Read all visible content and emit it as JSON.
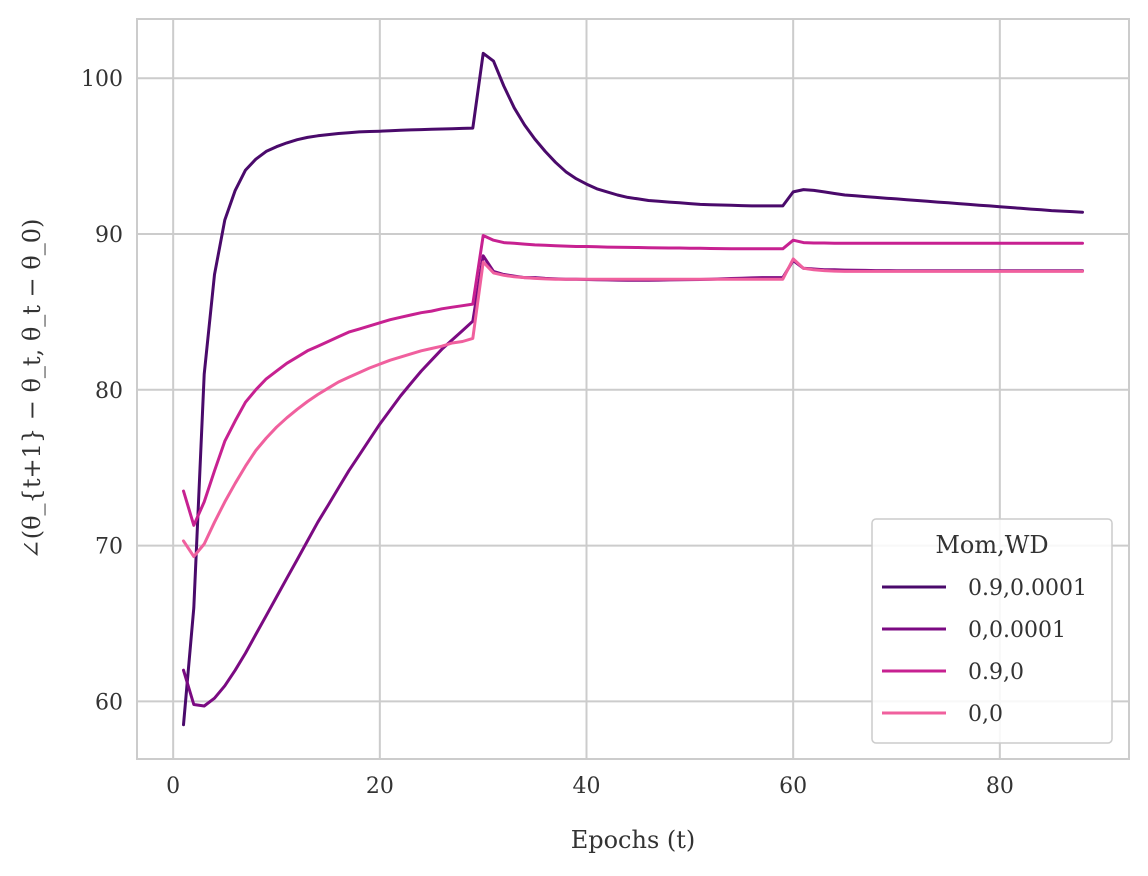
{
  "chart_data": {
    "type": "line",
    "title": "",
    "xlabel": "Epochs (t)",
    "ylabel": "∠(θ_{t+1} − θ_t, θ_t − θ_0)",
    "xlim": [
      -3.5,
      92.5
    ],
    "ylim": [
      56.3,
      103.8
    ],
    "xticks": [
      0,
      20,
      40,
      60,
      80
    ],
    "yticks": [
      60,
      70,
      80,
      90,
      100
    ],
    "xtick_labels": [
      "0",
      "20",
      "40",
      "60",
      "80"
    ],
    "ytick_labels": [
      "60",
      "70",
      "80",
      "90",
      "100"
    ],
    "grid": true,
    "legend": {
      "title": "Mom,WD",
      "placement": "bottom-right"
    },
    "series": [
      {
        "name": "0.9,0.0001",
        "color": "#4a0a6b",
        "x": [
          1,
          2,
          3,
          4,
          5,
          6,
          7,
          8,
          9,
          10,
          11,
          12,
          13,
          14,
          15,
          16,
          17,
          18,
          19,
          20,
          21,
          22,
          23,
          24,
          25,
          26,
          27,
          28,
          29,
          30,
          31,
          32,
          33,
          34,
          35,
          36,
          37,
          38,
          39,
          40,
          41,
          42,
          43,
          44,
          45,
          46,
          47,
          48,
          49,
          50,
          51,
          52,
          53,
          54,
          55,
          56,
          57,
          58,
          59,
          60,
          61,
          62,
          63,
          64,
          65,
          66,
          67,
          68,
          69,
          70,
          71,
          72,
          73,
          74,
          75,
          76,
          77,
          78,
          79,
          80,
          81,
          82,
          83,
          84,
          85,
          86,
          87,
          88
        ],
        "y": [
          58.5,
          66.0,
          81.0,
          87.4,
          90.9,
          92.8,
          94.1,
          94.8,
          95.3,
          95.6,
          95.85,
          96.05,
          96.2,
          96.3,
          96.38,
          96.45,
          96.5,
          96.55,
          96.58,
          96.6,
          96.63,
          96.66,
          96.68,
          96.7,
          96.72,
          96.74,
          96.76,
          96.78,
          96.8,
          101.6,
          101.1,
          99.5,
          98.1,
          97.0,
          96.1,
          95.3,
          94.6,
          94.0,
          93.55,
          93.2,
          92.9,
          92.7,
          92.5,
          92.35,
          92.25,
          92.15,
          92.1,
          92.05,
          92.0,
          91.95,
          91.9,
          91.88,
          91.86,
          91.84,
          91.82,
          91.8,
          91.8,
          91.8,
          91.8,
          92.7,
          92.85,
          92.8,
          92.7,
          92.6,
          92.5,
          92.45,
          92.4,
          92.35,
          92.3,
          92.25,
          92.2,
          92.15,
          92.1,
          92.05,
          92.0,
          91.95,
          91.9,
          91.85,
          91.8,
          91.75,
          91.7,
          91.65,
          91.6,
          91.55,
          91.5,
          91.47,
          91.44,
          91.4
        ]
      },
      {
        "name": "0,0.0001",
        "color": "#7b0a82",
        "x": [
          1,
          2,
          3,
          4,
          5,
          6,
          7,
          8,
          9,
          10,
          11,
          12,
          13,
          14,
          15,
          16,
          17,
          18,
          19,
          20,
          21,
          22,
          23,
          24,
          25,
          26,
          27,
          28,
          29,
          30,
          31,
          32,
          33,
          34,
          35,
          36,
          37,
          38,
          39,
          40,
          41,
          42,
          43,
          44,
          45,
          46,
          47,
          48,
          49,
          50,
          51,
          52,
          53,
          54,
          55,
          56,
          57,
          58,
          59,
          60,
          61,
          62,
          63,
          64,
          65,
          66,
          67,
          68,
          69,
          70,
          71,
          72,
          73,
          74,
          75,
          76,
          77,
          78,
          79,
          80,
          81,
          82,
          83,
          84,
          85,
          86,
          87,
          88
        ],
        "y": [
          62.0,
          59.8,
          59.7,
          60.2,
          61.0,
          62.0,
          63.1,
          64.3,
          65.5,
          66.7,
          67.9,
          69.1,
          70.3,
          71.5,
          72.6,
          73.7,
          74.8,
          75.8,
          76.8,
          77.8,
          78.7,
          79.6,
          80.4,
          81.2,
          81.9,
          82.6,
          83.2,
          83.8,
          84.4,
          88.6,
          87.6,
          87.4,
          87.3,
          87.2,
          87.2,
          87.15,
          87.12,
          87.1,
          87.1,
          87.08,
          87.06,
          87.05,
          87.04,
          87.03,
          87.03,
          87.03,
          87.04,
          87.05,
          87.06,
          87.07,
          87.08,
          87.1,
          87.12,
          87.14,
          87.16,
          87.18,
          87.2,
          87.2,
          87.2,
          88.3,
          87.8,
          87.75,
          87.7,
          87.7,
          87.68,
          87.67,
          87.66,
          87.65,
          87.65,
          87.64,
          87.64,
          87.64,
          87.64,
          87.64,
          87.64,
          87.64,
          87.64,
          87.64,
          87.64,
          87.64,
          87.64,
          87.64,
          87.64,
          87.64,
          87.64,
          87.64,
          87.64,
          87.64
        ]
      },
      {
        "name": "0.9,0",
        "color": "#c72191",
        "x": [
          1,
          2,
          3,
          4,
          5,
          6,
          7,
          8,
          9,
          10,
          11,
          12,
          13,
          14,
          15,
          16,
          17,
          18,
          19,
          20,
          21,
          22,
          23,
          24,
          25,
          26,
          27,
          28,
          29,
          30,
          31,
          32,
          33,
          34,
          35,
          36,
          37,
          38,
          39,
          40,
          41,
          42,
          43,
          44,
          45,
          46,
          47,
          48,
          49,
          50,
          51,
          52,
          53,
          54,
          55,
          56,
          57,
          58,
          59,
          60,
          61,
          62,
          63,
          64,
          65,
          66,
          67,
          68,
          69,
          70,
          71,
          72,
          73,
          74,
          75,
          76,
          77,
          78,
          79,
          80,
          81,
          82,
          83,
          84,
          85,
          86,
          87,
          88
        ],
        "y": [
          73.5,
          71.3,
          72.8,
          74.8,
          76.7,
          78.0,
          79.2,
          80.0,
          80.7,
          81.2,
          81.7,
          82.1,
          82.5,
          82.8,
          83.1,
          83.4,
          83.7,
          83.9,
          84.1,
          84.3,
          84.5,
          84.65,
          84.8,
          84.95,
          85.05,
          85.2,
          85.3,
          85.4,
          85.5,
          89.9,
          89.6,
          89.45,
          89.4,
          89.35,
          89.3,
          89.28,
          89.25,
          89.22,
          89.2,
          89.2,
          89.18,
          89.16,
          89.15,
          89.14,
          89.13,
          89.12,
          89.11,
          89.1,
          89.1,
          89.09,
          89.08,
          89.07,
          89.06,
          89.05,
          89.05,
          89.05,
          89.05,
          89.05,
          89.05,
          89.6,
          89.45,
          89.42,
          89.42,
          89.4,
          89.4,
          89.4,
          89.4,
          89.4,
          89.4,
          89.4,
          89.4,
          89.4,
          89.4,
          89.4,
          89.4,
          89.4,
          89.4,
          89.4,
          89.4,
          89.4,
          89.4,
          89.4,
          89.4,
          89.4,
          89.4,
          89.4,
          89.4,
          89.4
        ]
      },
      {
        "name": "0,0",
        "color": "#f0609e",
        "x": [
          1,
          2,
          3,
          4,
          5,
          6,
          7,
          8,
          9,
          10,
          11,
          12,
          13,
          14,
          15,
          16,
          17,
          18,
          19,
          20,
          21,
          22,
          23,
          24,
          25,
          26,
          27,
          28,
          29,
          30,
          31,
          32,
          33,
          34,
          35,
          36,
          37,
          38,
          39,
          40,
          41,
          42,
          43,
          44,
          45,
          46,
          47,
          48,
          49,
          50,
          51,
          52,
          53,
          54,
          55,
          56,
          57,
          58,
          59,
          60,
          61,
          62,
          63,
          64,
          65,
          66,
          67,
          68,
          69,
          70,
          71,
          72,
          73,
          74,
          75,
          76,
          77,
          78,
          79,
          80,
          81,
          82,
          83,
          84,
          85,
          86,
          87,
          88
        ],
        "y": [
          70.3,
          69.3,
          70.1,
          71.5,
          72.8,
          74.0,
          75.1,
          76.1,
          76.9,
          77.6,
          78.2,
          78.75,
          79.25,
          79.7,
          80.1,
          80.5,
          80.8,
          81.1,
          81.4,
          81.65,
          81.9,
          82.1,
          82.3,
          82.5,
          82.65,
          82.8,
          83.0,
          83.1,
          83.3,
          88.2,
          87.5,
          87.35,
          87.25,
          87.2,
          87.15,
          87.12,
          87.1,
          87.1,
          87.1,
          87.1,
          87.1,
          87.1,
          87.1,
          87.1,
          87.1,
          87.1,
          87.1,
          87.1,
          87.1,
          87.1,
          87.1,
          87.1,
          87.1,
          87.1,
          87.1,
          87.1,
          87.1,
          87.1,
          87.1,
          88.4,
          87.8,
          87.7,
          87.65,
          87.62,
          87.6,
          87.6,
          87.6,
          87.6,
          87.6,
          87.6,
          87.6,
          87.6,
          87.6,
          87.6,
          87.6,
          87.6,
          87.6,
          87.6,
          87.6,
          87.6,
          87.6,
          87.6,
          87.6,
          87.6,
          87.6,
          87.6,
          87.6,
          87.6
        ]
      }
    ]
  }
}
